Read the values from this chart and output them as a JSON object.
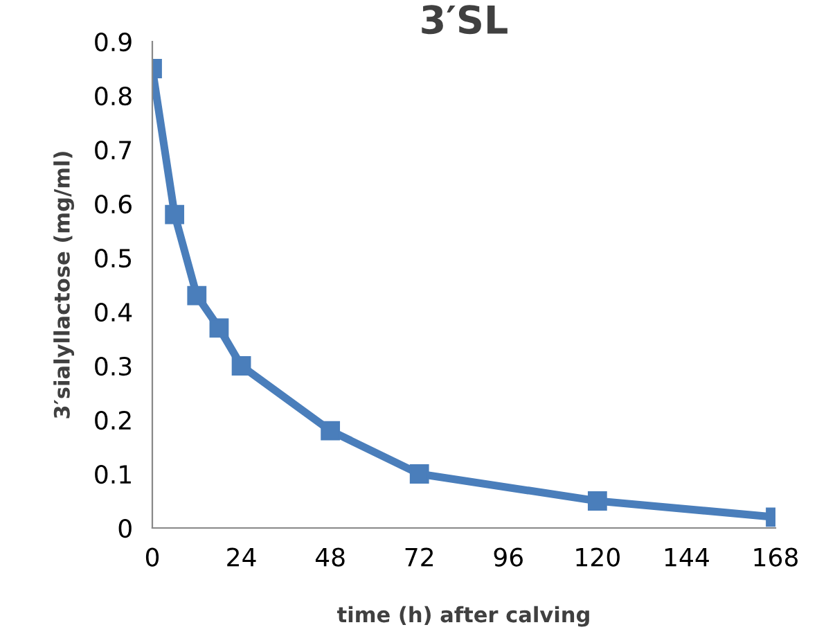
{
  "chart_data": {
    "type": "line",
    "title": "3′SL",
    "xlabel": "time (h) after calving",
    "ylabel": "3′sialyllactose (mg/ml)",
    "x": [
      0,
      6,
      12,
      18,
      24,
      48,
      72,
      120,
      168
    ],
    "series": [
      {
        "color": "#4a7ebb",
        "values": [
          0.85,
          0.58,
          0.43,
          0.37,
          0.3,
          0.18,
          0.1,
          0.05,
          0.02
        ]
      }
    ],
    "xlim": [
      0,
      168
    ],
    "xticks": [
      0,
      24,
      48,
      72,
      96,
      120,
      144,
      168
    ],
    "ylim": [
      0,
      0.9
    ],
    "yticks": [
      0,
      0.1,
      0.2,
      0.3,
      0.4,
      0.5,
      0.6,
      0.7,
      0.8,
      0.9
    ],
    "grid": false,
    "legend": false,
    "marker": "square",
    "line_style": "solid"
  }
}
